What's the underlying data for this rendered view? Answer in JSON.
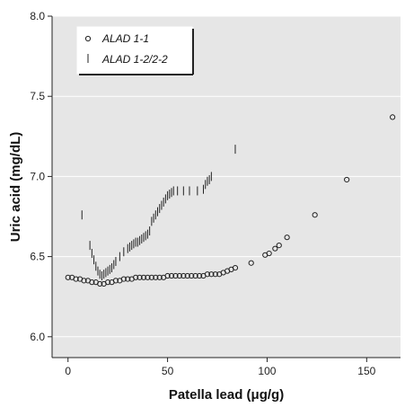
{
  "chart_data": {
    "type": "scatter",
    "title": "",
    "xlabel": "Patella lead (μg/g)",
    "ylabel": "Uric acid (mg/dL)",
    "xlim": [
      -8,
      167
    ],
    "ylim": [
      5.87,
      8.0
    ],
    "xticks": [
      0,
      50,
      100,
      150
    ],
    "yticks": [
      6.0,
      6.5,
      7.0,
      7.5,
      8.0
    ],
    "xtick_labels": [
      "0",
      "50",
      "100",
      "150"
    ],
    "ytick_labels": [
      "6.0",
      "6.5",
      "7.0",
      "7.5",
      "8.0"
    ],
    "grid": "horizontal",
    "legend_position": "top-left",
    "colors": {
      "plot_background": "#e6e6e6",
      "grid": "#ffffff",
      "marker": "#222222",
      "legend_bg": "#ffffff"
    },
    "series": [
      {
        "name": "ALAD 1-1",
        "marker": "circle",
        "x": [
          0,
          2,
          4,
          6,
          8,
          10,
          12,
          14,
          16,
          18,
          20,
          22,
          24,
          26,
          28,
          30,
          32,
          34,
          36,
          38,
          40,
          42,
          44,
          46,
          48,
          50,
          52,
          54,
          56,
          58,
          60,
          62,
          64,
          66,
          68,
          70,
          72,
          74,
          76,
          78,
          80,
          82,
          84,
          92,
          99,
          101,
          104,
          106,
          110,
          124,
          140,
          163
        ],
        "y": [
          6.37,
          6.37,
          6.36,
          6.36,
          6.35,
          6.35,
          6.34,
          6.34,
          6.33,
          6.33,
          6.34,
          6.34,
          6.35,
          6.35,
          6.36,
          6.36,
          6.36,
          6.37,
          6.37,
          6.37,
          6.37,
          6.37,
          6.37,
          6.37,
          6.37,
          6.38,
          6.38,
          6.38,
          6.38,
          6.38,
          6.38,
          6.38,
          6.38,
          6.38,
          6.38,
          6.39,
          6.39,
          6.39,
          6.39,
          6.4,
          6.41,
          6.42,
          6.43,
          6.46,
          6.51,
          6.52,
          6.55,
          6.57,
          6.62,
          6.76,
          6.98,
          7.37
        ]
      },
      {
        "name": "ALAD 1-2/2-2",
        "marker": "vertical-line",
        "x": [
          7,
          11,
          12,
          13,
          14,
          15,
          16,
          17,
          18,
          19,
          20,
          21,
          22,
          23,
          24,
          26,
          28,
          30,
          31,
          32,
          33,
          34,
          35,
          36,
          37,
          38,
          39,
          40,
          41,
          42,
          43,
          44,
          45,
          46,
          47,
          48,
          49,
          50,
          51,
          52,
          53,
          55,
          58,
          61,
          65,
          68,
          69,
          70,
          71,
          72,
          84
        ],
        "y": [
          6.76,
          6.57,
          6.52,
          6.48,
          6.44,
          6.41,
          6.39,
          6.38,
          6.39,
          6.4,
          6.41,
          6.42,
          6.43,
          6.45,
          6.47,
          6.5,
          6.53,
          6.55,
          6.56,
          6.57,
          6.58,
          6.59,
          6.59,
          6.6,
          6.61,
          6.62,
          6.63,
          6.64,
          6.66,
          6.72,
          6.74,
          6.76,
          6.78,
          6.8,
          6.82,
          6.84,
          6.86,
          6.88,
          6.89,
          6.9,
          6.91,
          6.91,
          6.91,
          6.91,
          6.91,
          6.92,
          6.95,
          6.97,
          6.98,
          7.0,
          7.17
        ]
      }
    ]
  }
}
